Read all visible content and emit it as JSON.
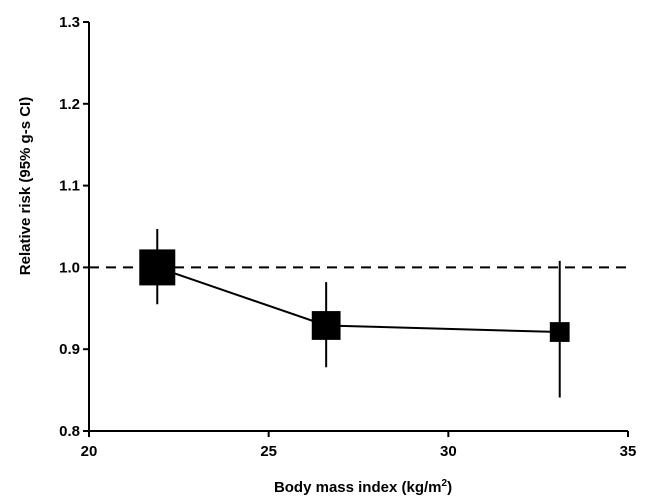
{
  "chart_data": {
    "type": "scatter",
    "xlabel": "Body mass index (kg/m",
    "xlabel_superscript": "2",
    "xlabel_close": ")",
    "ylabel": "Relative risk (95% g-s CI)",
    "xlim": [
      20,
      35
    ],
    "ylim": [
      0.8,
      1.3
    ],
    "x_ticks": [
      20,
      25,
      30,
      35
    ],
    "y_ticks": [
      0.8,
      0.9,
      1.0,
      1.1,
      1.2,
      1.3
    ],
    "x_tick_labels": [
      "20",
      "25",
      "30",
      "35"
    ],
    "y_tick_labels": [
      "0.8",
      "0.9",
      "1.0",
      "1.1",
      "1.2",
      "1.3"
    ],
    "grid": false,
    "reference_line": {
      "y": 1.0,
      "style": "dashed"
    },
    "marker": "square",
    "colors": {
      "series": "#000000"
    },
    "points": [
      {
        "x": 21.9,
        "y": 1.0,
        "ci_low": 0.955,
        "ci_high": 1.047,
        "weight": 1.0
      },
      {
        "x": 26.6,
        "y": 0.929,
        "ci_low": 0.878,
        "ci_high": 0.982,
        "weight": 0.8
      },
      {
        "x": 33.1,
        "y": 0.921,
        "ci_low": 0.841,
        "ci_high": 1.008,
        "weight": 0.55
      }
    ]
  }
}
